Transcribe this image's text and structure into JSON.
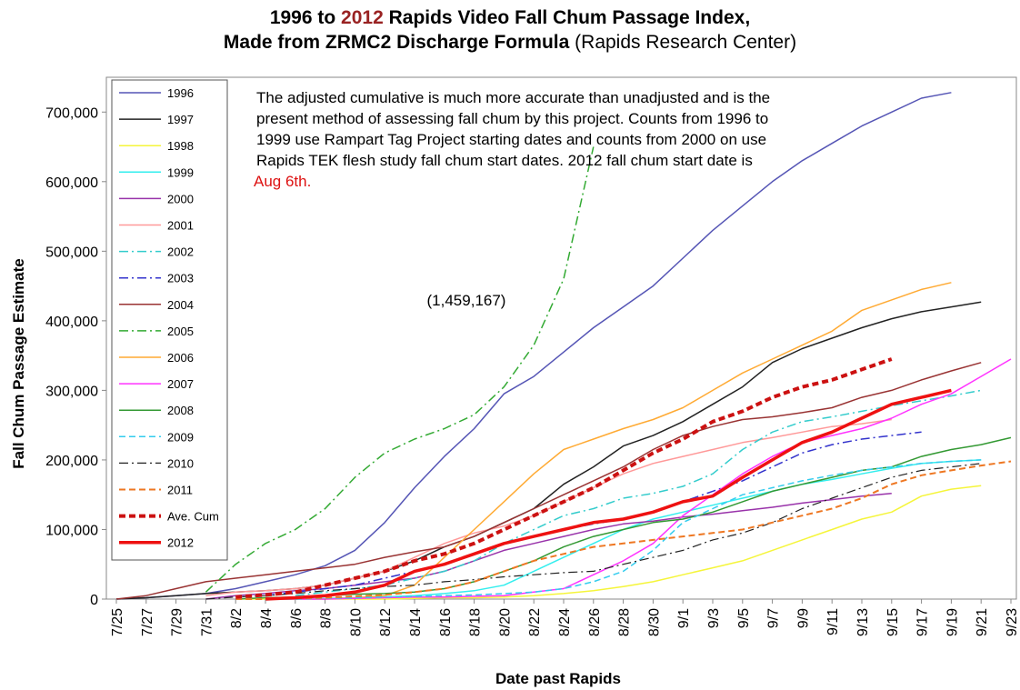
{
  "chart_data": {
    "type": "line",
    "title_before": "1996 to",
    "title_highlight": "2012",
    "title_after": "Rapids Video Fall Chum Passage Index,",
    "subtitle_bold": "Made from ZRMC2 Discharge Formula",
    "subtitle_normal": "(Rapids Research Center)",
    "x_label": "Date past Rapids",
    "y_label": "Fall Chum Passage Estimate",
    "annotation_lines": [
      "The adjusted cumulative is much more accurate than unadjusted and is the",
      "present method of assessing fall chum by this project. Counts from 1996 to",
      "1999 use Rampart Tag Project starting dates and counts from 2000 on use",
      "Rapids TEK flesh study fall chum start dates. 2012 fall chum start date is"
    ],
    "annotation_highlight": "Aug 6th.",
    "annotation_2005": "(1,459,167)",
    "legend_position": "upper left",
    "grid": false,
    "categories": [
      "7/25",
      "7/27",
      "7/29",
      "7/31",
      "8/2",
      "8/4",
      "8/6",
      "8/8",
      "8/10",
      "8/12",
      "8/14",
      "8/16",
      "8/18",
      "8/20",
      "8/22",
      "8/24",
      "8/26",
      "8/28",
      "8/30",
      "9/1",
      "9/3",
      "9/5",
      "9/7",
      "9/9",
      "9/11",
      "9/13",
      "9/15",
      "9/17",
      "9/19",
      "9/21",
      "9/23"
    ],
    "ylim": [
      0,
      750000
    ],
    "yticks": [
      0,
      {
        "value": 100000,
        "label": "100,000"
      },
      {
        "value": 200000,
        "label": "200,000"
      },
      {
        "value": 300000,
        "label": "300,000"
      },
      {
        "value": 400000,
        "label": "400,000"
      },
      {
        "value": 500000,
        "label": "500,000"
      },
      {
        "value": 600000,
        "label": "600,000"
      },
      {
        "value": 700000,
        "label": "700,000"
      }
    ],
    "series": [
      {
        "name": "1996",
        "color": "#5555b5",
        "style": "solid",
        "width": 1.5,
        "values": [
          0,
          2000,
          5000,
          8000,
          15000,
          25000,
          35000,
          48000,
          70000,
          110000,
          160000,
          205000,
          245000,
          295000,
          320000,
          355000,
          390000,
          420000,
          450000,
          490000,
          530000,
          565000,
          600000,
          630000,
          655000,
          680000,
          700000,
          720000,
          728000,
          null,
          null
        ]
      },
      {
        "name": "1997",
        "color": "#222222",
        "style": "solid",
        "width": 1.5,
        "values": [
          0,
          2000,
          5000,
          8000,
          10000,
          12000,
          15000,
          20000,
          30000,
          40000,
          55000,
          75000,
          90000,
          110000,
          130000,
          165000,
          190000,
          220000,
          235000,
          255000,
          280000,
          305000,
          340000,
          360000,
          375000,
          390000,
          403000,
          413000,
          420000,
          427000,
          null
        ]
      },
      {
        "name": "1998",
        "color": "#f5f53a",
        "style": "solid",
        "width": 1.5,
        "values": [
          null,
          null,
          null,
          null,
          0,
          0,
          0,
          0,
          0,
          0,
          1000,
          2000,
          2000,
          3000,
          5000,
          8000,
          12000,
          18000,
          25000,
          35000,
          45000,
          55000,
          70000,
          85000,
          100000,
          115000,
          125000,
          148000,
          158000,
          163000,
          null
        ]
      },
      {
        "name": "1999",
        "color": "#33eeee",
        "style": "solid",
        "width": 1.5,
        "values": [
          null,
          null,
          null,
          null,
          null,
          0,
          0,
          1000,
          2000,
          3000,
          5000,
          8000,
          12000,
          20000,
          40000,
          60000,
          80000,
          100000,
          115000,
          125000,
          135000,
          145000,
          155000,
          165000,
          172000,
          180000,
          188000,
          195000,
          198000,
          200000,
          null
        ]
      },
      {
        "name": "2000",
        "color": "#9933aa",
        "style": "solid",
        "width": 1.5,
        "values": [
          null,
          null,
          null,
          0,
          5000,
          8000,
          12000,
          15000,
          20000,
          25000,
          30000,
          40000,
          55000,
          70000,
          80000,
          90000,
          100000,
          108000,
          112000,
          118000,
          122000,
          127000,
          132000,
          138000,
          143000,
          148000,
          152000,
          null,
          null,
          null,
          null
        ]
      },
      {
        "name": "2001",
        "color": "#ff9999",
        "style": "solid",
        "width": 1.5,
        "values": [
          null,
          null,
          null,
          5000,
          10000,
          12000,
          15000,
          20000,
          30000,
          40000,
          60000,
          80000,
          95000,
          105000,
          120000,
          140000,
          160000,
          180000,
          195000,
          205000,
          215000,
          225000,
          232000,
          240000,
          248000,
          252000,
          258000,
          null,
          null,
          null,
          null
        ]
      },
      {
        "name": "2002",
        "color": "#33cccc",
        "style": "dashdot",
        "width": 1.5,
        "values": [
          null,
          null,
          null,
          null,
          null,
          null,
          5000,
          10000,
          15000,
          20000,
          30000,
          40000,
          55000,
          80000,
          100000,
          120000,
          130000,
          145000,
          152000,
          162000,
          180000,
          215000,
          240000,
          255000,
          262000,
          270000,
          278000,
          285000,
          292000,
          300000,
          null
        ]
      },
      {
        "name": "2003",
        "color": "#3333cc",
        "style": "dashdot",
        "width": 1.5,
        "values": [
          null,
          null,
          null,
          null,
          null,
          5000,
          10000,
          15000,
          20000,
          30000,
          40000,
          50000,
          65000,
          80000,
          90000,
          100000,
          108000,
          115000,
          125000,
          140000,
          155000,
          170000,
          190000,
          210000,
          222000,
          230000,
          235000,
          240000,
          null,
          null,
          null
        ]
      },
      {
        "name": "2004",
        "color": "#993333",
        "style": "solid",
        "width": 1.5,
        "values": [
          0,
          5000,
          15000,
          25000,
          30000,
          35000,
          40000,
          45000,
          50000,
          60000,
          68000,
          75000,
          90000,
          110000,
          130000,
          150000,
          170000,
          190000,
          215000,
          235000,
          248000,
          258000,
          262000,
          268000,
          275000,
          290000,
          300000,
          315000,
          328000,
          340000,
          null
        ]
      },
      {
        "name": "2005",
        "color": "#33aa33",
        "style": "dashdot",
        "width": 1.5,
        "values": [
          null,
          null,
          null,
          10000,
          50000,
          80000,
          100000,
          130000,
          175000,
          210000,
          230000,
          245000,
          265000,
          305000,
          365000,
          460000,
          650000,
          null,
          null,
          null,
          null,
          null,
          null,
          null,
          null,
          null,
          null,
          null,
          null,
          null,
          null
        ]
      },
      {
        "name": "2006",
        "color": "#ffaa33",
        "style": "solid",
        "width": 1.5,
        "values": [
          null,
          null,
          null,
          null,
          null,
          0,
          0,
          0,
          2000,
          5000,
          20000,
          60000,
          100000,
          140000,
          180000,
          215000,
          230000,
          245000,
          258000,
          275000,
          300000,
          325000,
          345000,
          365000,
          385000,
          415000,
          430000,
          445000,
          455000,
          null,
          null
        ]
      },
      {
        "name": "2007",
        "color": "#ff33ff",
        "style": "solid",
        "width": 1.5,
        "values": [
          null,
          null,
          null,
          null,
          null,
          0,
          0,
          0,
          1000,
          2000,
          3000,
          3000,
          4000,
          5000,
          10000,
          15000,
          35000,
          55000,
          80000,
          120000,
          150000,
          180000,
          205000,
          225000,
          235000,
          245000,
          260000,
          280000,
          295000,
          320000,
          345000
        ]
      },
      {
        "name": "2008",
        "color": "#339933",
        "style": "solid",
        "width": 1.5,
        "values": [
          null,
          null,
          null,
          null,
          0,
          2000,
          3000,
          5000,
          7000,
          8000,
          10000,
          15000,
          25000,
          40000,
          55000,
          75000,
          90000,
          100000,
          110000,
          115000,
          125000,
          140000,
          155000,
          165000,
          175000,
          185000,
          190000,
          205000,
          215000,
          222000,
          232000
        ]
      },
      {
        "name": "2009",
        "color": "#33ccee",
        "style": "dash",
        "width": 1.5,
        "values": [
          null,
          null,
          null,
          null,
          0,
          0,
          0,
          1000,
          2000,
          3000,
          4000,
          5000,
          6000,
          8000,
          10000,
          15000,
          25000,
          40000,
          70000,
          110000,
          130000,
          150000,
          160000,
          170000,
          178000,
          185000,
          190000,
          195000,
          198000,
          200000,
          null
        ]
      },
      {
        "name": "2010",
        "color": "#222222",
        "style": "dashdot",
        "width": 1.2,
        "values": [
          null,
          null,
          null,
          0,
          3000,
          5000,
          8000,
          12000,
          15000,
          18000,
          20000,
          25000,
          28000,
          32000,
          35000,
          38000,
          40000,
          50000,
          60000,
          70000,
          85000,
          95000,
          110000,
          130000,
          145000,
          160000,
          175000,
          185000,
          190000,
          195000,
          null
        ]
      },
      {
        "name": "2011",
        "color": "#ee7722",
        "style": "dash",
        "width": 2,
        "values": [
          null,
          null,
          null,
          null,
          0,
          0,
          1000,
          2000,
          4000,
          6000,
          10000,
          15000,
          25000,
          40000,
          55000,
          65000,
          75000,
          80000,
          85000,
          90000,
          95000,
          100000,
          110000,
          120000,
          130000,
          145000,
          165000,
          178000,
          185000,
          192000,
          198000
        ]
      },
      {
        "name": "Ave. Cum",
        "color": "#cc1111",
        "style": "dash",
        "width": 4,
        "values": [
          null,
          null,
          null,
          null,
          3000,
          6000,
          10000,
          20000,
          30000,
          40000,
          55000,
          65000,
          80000,
          100000,
          120000,
          140000,
          160000,
          185000,
          210000,
          230000,
          255000,
          270000,
          290000,
          305000,
          315000,
          330000,
          345000,
          null,
          null,
          null,
          null
        ]
      },
      {
        "name": "2012",
        "color": "#ee1111",
        "style": "solid",
        "width": 3.5,
        "values": [
          null,
          null,
          null,
          null,
          null,
          0,
          2000,
          5000,
          10000,
          20000,
          40000,
          50000,
          65000,
          80000,
          90000,
          100000,
          110000,
          115000,
          125000,
          140000,
          148000,
          175000,
          200000,
          225000,
          240000,
          260000,
          280000,
          290000,
          300000,
          null,
          null
        ]
      }
    ]
  }
}
